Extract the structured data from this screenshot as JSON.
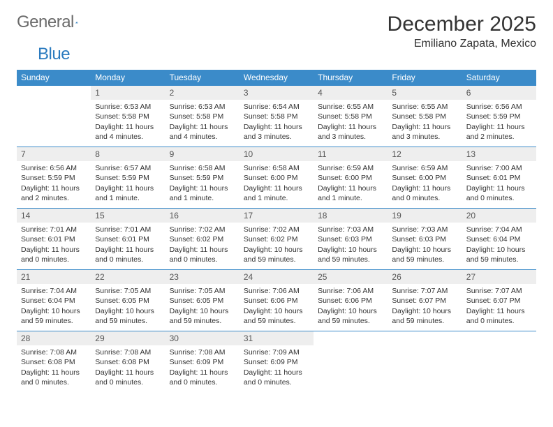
{
  "logo": {
    "word1": "General",
    "word2": "Blue"
  },
  "title": "December 2025",
  "location": "Emiliano Zapata, Mexico",
  "colors": {
    "header_bg": "#3b8bc9",
    "header_text": "#ffffff",
    "daynum_bg": "#eeeeee",
    "rule": "#3b8bc9"
  },
  "day_headers": [
    "Sunday",
    "Monday",
    "Tuesday",
    "Wednesday",
    "Thursday",
    "Friday",
    "Saturday"
  ],
  "weeks": [
    [
      {
        "n": "",
        "empty": true
      },
      {
        "n": "1",
        "sr": "Sunrise: 6:53 AM",
        "ss": "Sunset: 5:58 PM",
        "dl": "Daylight: 11 hours and 4 minutes."
      },
      {
        "n": "2",
        "sr": "Sunrise: 6:53 AM",
        "ss": "Sunset: 5:58 PM",
        "dl": "Daylight: 11 hours and 4 minutes."
      },
      {
        "n": "3",
        "sr": "Sunrise: 6:54 AM",
        "ss": "Sunset: 5:58 PM",
        "dl": "Daylight: 11 hours and 3 minutes."
      },
      {
        "n": "4",
        "sr": "Sunrise: 6:55 AM",
        "ss": "Sunset: 5:58 PM",
        "dl": "Daylight: 11 hours and 3 minutes."
      },
      {
        "n": "5",
        "sr": "Sunrise: 6:55 AM",
        "ss": "Sunset: 5:58 PM",
        "dl": "Daylight: 11 hours and 3 minutes."
      },
      {
        "n": "6",
        "sr": "Sunrise: 6:56 AM",
        "ss": "Sunset: 5:59 PM",
        "dl": "Daylight: 11 hours and 2 minutes."
      }
    ],
    [
      {
        "n": "7",
        "sr": "Sunrise: 6:56 AM",
        "ss": "Sunset: 5:59 PM",
        "dl": "Daylight: 11 hours and 2 minutes."
      },
      {
        "n": "8",
        "sr": "Sunrise: 6:57 AM",
        "ss": "Sunset: 5:59 PM",
        "dl": "Daylight: 11 hours and 1 minute."
      },
      {
        "n": "9",
        "sr": "Sunrise: 6:58 AM",
        "ss": "Sunset: 5:59 PM",
        "dl": "Daylight: 11 hours and 1 minute."
      },
      {
        "n": "10",
        "sr": "Sunrise: 6:58 AM",
        "ss": "Sunset: 6:00 PM",
        "dl": "Daylight: 11 hours and 1 minute."
      },
      {
        "n": "11",
        "sr": "Sunrise: 6:59 AM",
        "ss": "Sunset: 6:00 PM",
        "dl": "Daylight: 11 hours and 1 minute."
      },
      {
        "n": "12",
        "sr": "Sunrise: 6:59 AM",
        "ss": "Sunset: 6:00 PM",
        "dl": "Daylight: 11 hours and 0 minutes."
      },
      {
        "n": "13",
        "sr": "Sunrise: 7:00 AM",
        "ss": "Sunset: 6:01 PM",
        "dl": "Daylight: 11 hours and 0 minutes."
      }
    ],
    [
      {
        "n": "14",
        "sr": "Sunrise: 7:01 AM",
        "ss": "Sunset: 6:01 PM",
        "dl": "Daylight: 11 hours and 0 minutes."
      },
      {
        "n": "15",
        "sr": "Sunrise: 7:01 AM",
        "ss": "Sunset: 6:01 PM",
        "dl": "Daylight: 11 hours and 0 minutes."
      },
      {
        "n": "16",
        "sr": "Sunrise: 7:02 AM",
        "ss": "Sunset: 6:02 PM",
        "dl": "Daylight: 11 hours and 0 minutes."
      },
      {
        "n": "17",
        "sr": "Sunrise: 7:02 AM",
        "ss": "Sunset: 6:02 PM",
        "dl": "Daylight: 10 hours and 59 minutes."
      },
      {
        "n": "18",
        "sr": "Sunrise: 7:03 AM",
        "ss": "Sunset: 6:03 PM",
        "dl": "Daylight: 10 hours and 59 minutes."
      },
      {
        "n": "19",
        "sr": "Sunrise: 7:03 AM",
        "ss": "Sunset: 6:03 PM",
        "dl": "Daylight: 10 hours and 59 minutes."
      },
      {
        "n": "20",
        "sr": "Sunrise: 7:04 AM",
        "ss": "Sunset: 6:04 PM",
        "dl": "Daylight: 10 hours and 59 minutes."
      }
    ],
    [
      {
        "n": "21",
        "sr": "Sunrise: 7:04 AM",
        "ss": "Sunset: 6:04 PM",
        "dl": "Daylight: 10 hours and 59 minutes."
      },
      {
        "n": "22",
        "sr": "Sunrise: 7:05 AM",
        "ss": "Sunset: 6:05 PM",
        "dl": "Daylight: 10 hours and 59 minutes."
      },
      {
        "n": "23",
        "sr": "Sunrise: 7:05 AM",
        "ss": "Sunset: 6:05 PM",
        "dl": "Daylight: 10 hours and 59 minutes."
      },
      {
        "n": "24",
        "sr": "Sunrise: 7:06 AM",
        "ss": "Sunset: 6:06 PM",
        "dl": "Daylight: 10 hours and 59 minutes."
      },
      {
        "n": "25",
        "sr": "Sunrise: 7:06 AM",
        "ss": "Sunset: 6:06 PM",
        "dl": "Daylight: 10 hours and 59 minutes."
      },
      {
        "n": "26",
        "sr": "Sunrise: 7:07 AM",
        "ss": "Sunset: 6:07 PM",
        "dl": "Daylight: 10 hours and 59 minutes."
      },
      {
        "n": "27",
        "sr": "Sunrise: 7:07 AM",
        "ss": "Sunset: 6:07 PM",
        "dl": "Daylight: 11 hours and 0 minutes."
      }
    ],
    [
      {
        "n": "28",
        "sr": "Sunrise: 7:08 AM",
        "ss": "Sunset: 6:08 PM",
        "dl": "Daylight: 11 hours and 0 minutes."
      },
      {
        "n": "29",
        "sr": "Sunrise: 7:08 AM",
        "ss": "Sunset: 6:08 PM",
        "dl": "Daylight: 11 hours and 0 minutes."
      },
      {
        "n": "30",
        "sr": "Sunrise: 7:08 AM",
        "ss": "Sunset: 6:09 PM",
        "dl": "Daylight: 11 hours and 0 minutes."
      },
      {
        "n": "31",
        "sr": "Sunrise: 7:09 AM",
        "ss": "Sunset: 6:09 PM",
        "dl": "Daylight: 11 hours and 0 minutes."
      },
      {
        "n": "",
        "empty": true
      },
      {
        "n": "",
        "empty": true
      },
      {
        "n": "",
        "empty": true
      }
    ]
  ]
}
